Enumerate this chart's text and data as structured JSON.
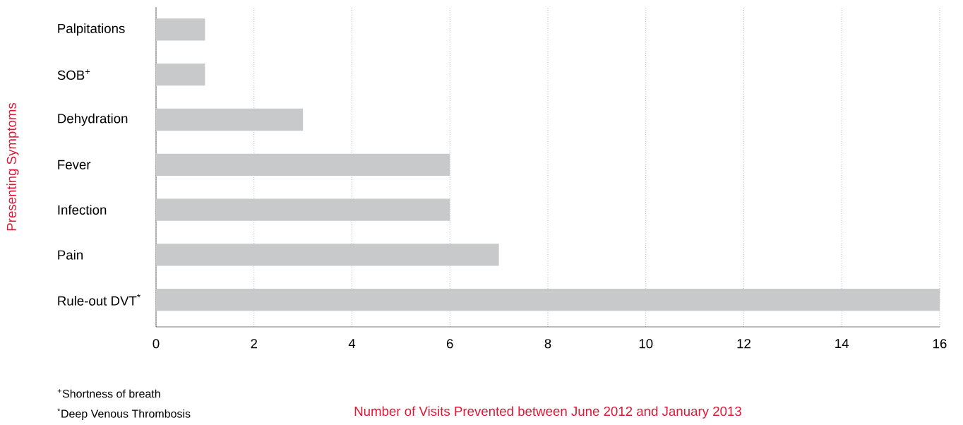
{
  "chart_data": {
    "type": "bar",
    "orientation": "horizontal",
    "categories": [
      "Palpitations",
      "SOB$^{+}$",
      "Dehydration",
      "Fever",
      "Infection",
      "Pain",
      "Rule-out DVT$^{*}$"
    ],
    "values": [
      1,
      1,
      3,
      6,
      6,
      7,
      16
    ],
    "color": "#c8c9cb",
    "xlim": [
      0,
      16
    ],
    "xticks": [
      0,
      2,
      4,
      6,
      8,
      10,
      12,
      14,
      16
    ],
    "grid": "x",
    "xlabel": "Number of Visits Prevented between June 2012 and January 2013",
    "ylabel": "Presenting Symptoms",
    "annotations": [
      "$^{+}$Shortness of breath",
      "$^{*}$Deep Venous Thrombosis"
    ]
  }
}
